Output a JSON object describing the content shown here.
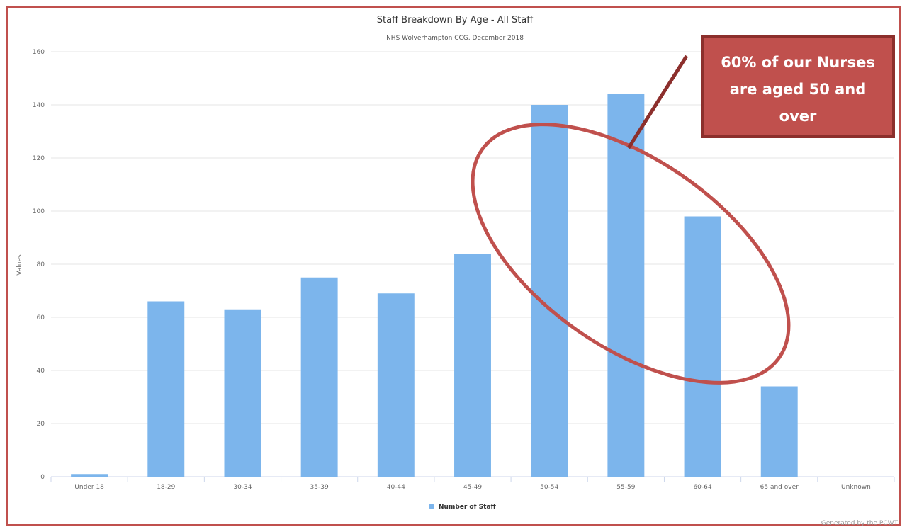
{
  "chart_data": {
    "type": "bar",
    "title": "Staff Breakdown By Age - All Staff",
    "subtitle": "NHS Wolverhampton CCG, December 2018",
    "ylabel": "Values",
    "xlabel": "",
    "categories": [
      "Under 18",
      "18-29",
      "30-34",
      "35-39",
      "40-44",
      "45-49",
      "50-54",
      "55-59",
      "60-64",
      "65 and over",
      "Unknown"
    ],
    "series": [
      {
        "name": "Number of Staff",
        "values": [
          1,
          66,
          63,
          75,
          69,
          84,
          140,
          144,
          98,
          34,
          0
        ]
      }
    ],
    "ylim": [
      0,
      160
    ],
    "yticks": [
      0,
      20,
      40,
      60,
      80,
      100,
      120,
      140,
      160
    ],
    "grid": true,
    "legend": "bottom-center",
    "bar_color": "#7cb5ec",
    "annotation": {
      "text_lines": [
        "60% of our Nurses",
        "are aged 50 and",
        "over"
      ],
      "box_color": "#c0504d",
      "box_border_color": "#8c2f2c",
      "ellipse_color": "#c0504d"
    },
    "credit": "Generated by the PCWT"
  }
}
